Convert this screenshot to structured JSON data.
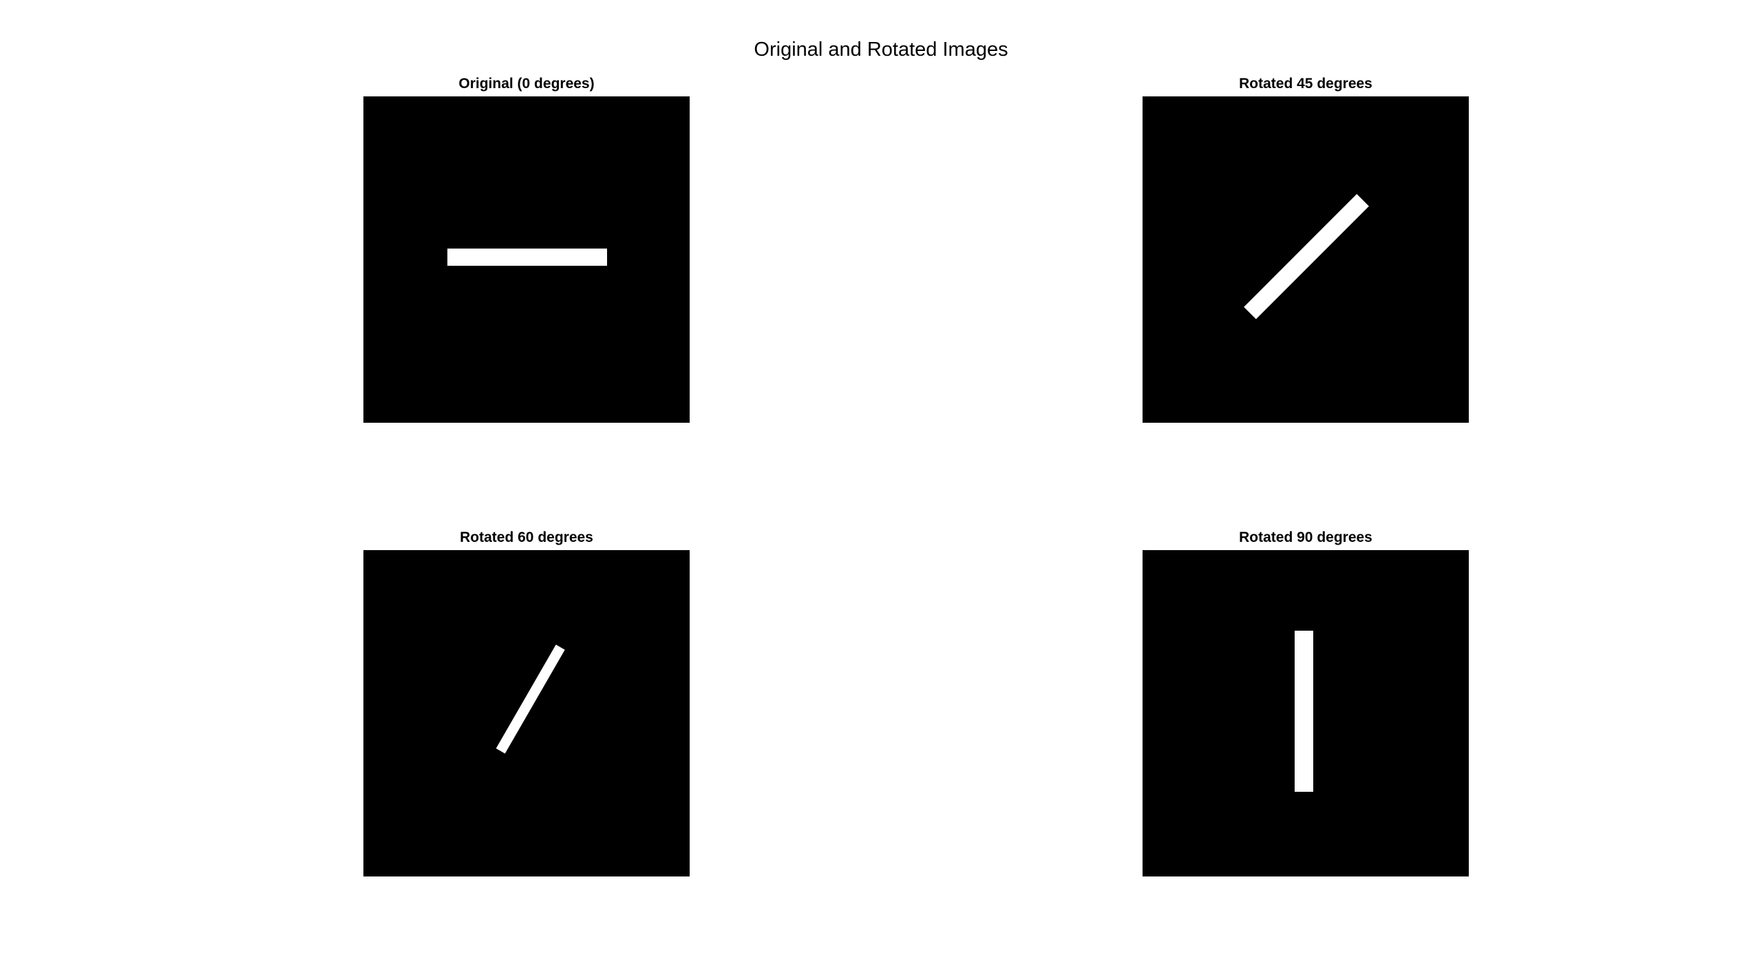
{
  "figure": {
    "title": "Original and Rotated Images"
  },
  "panels": [
    {
      "title": "Original (0 degrees)",
      "angle_deg": 0
    },
    {
      "title": "Rotated 45 degrees",
      "angle_deg": 45
    },
    {
      "title": "Rotated 60 degrees",
      "angle_deg": 60
    },
    {
      "title": "Rotated 90 degrees",
      "angle_deg": 90
    }
  ],
  "colors": {
    "background": "#000000",
    "shape": "#ffffff"
  }
}
